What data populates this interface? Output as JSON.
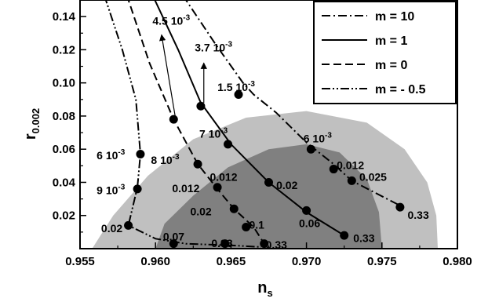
{
  "chart_data": {
    "type": "line",
    "xlabel": "n",
    "xlabel_sub": "s",
    "ylabel": "r",
    "ylabel_sub": "0.002",
    "xlim": [
      0.955,
      0.98
    ],
    "ylim": [
      0.0,
      0.15
    ],
    "xticks": [
      "0.955",
      "0.960",
      "0.965",
      "0.970",
      "0.975",
      "0.980"
    ],
    "yticks": [
      "0.02",
      "0.04",
      "0.06",
      "0.08",
      "0.10",
      "0.12",
      "0.14"
    ],
    "xtick_values": [
      0.955,
      0.96,
      0.965,
      0.97,
      0.975,
      0.98
    ],
    "ytick_values": [
      0.02,
      0.04,
      0.06,
      0.08,
      0.1,
      0.12,
      0.14
    ],
    "legend_position": "top-right",
    "grid": false,
    "regions": [
      {
        "name": "outer-contour",
        "color": "#c0c0c0",
        "points": [
          [
            0.9558,
            0.0
          ],
          [
            0.9572,
            0.02
          ],
          [
            0.9595,
            0.044
          ],
          [
            0.9625,
            0.066
          ],
          [
            0.966,
            0.079
          ],
          [
            0.97,
            0.083
          ],
          [
            0.974,
            0.076
          ],
          [
            0.9765,
            0.06
          ],
          [
            0.978,
            0.04
          ],
          [
            0.9786,
            0.02
          ],
          [
            0.9787,
            0.0
          ]
        ]
      },
      {
        "name": "inner-contour",
        "color": "#808080",
        "points": [
          [
            0.96,
            0.0
          ],
          [
            0.9606,
            0.015
          ],
          [
            0.9625,
            0.032
          ],
          [
            0.9648,
            0.049
          ],
          [
            0.9675,
            0.06
          ],
          [
            0.97,
            0.063
          ],
          [
            0.9722,
            0.058
          ],
          [
            0.974,
            0.042
          ],
          [
            0.9748,
            0.022
          ],
          [
            0.975,
            0.0
          ]
        ]
      }
    ],
    "series": [
      {
        "legend": "m =  10",
        "dash": "dashdot",
        "points": [
          [
            0.9618,
            0.153
          ],
          [
            0.964,
            0.123
          ],
          [
            0.9658,
            0.1
          ],
          [
            0.9665,
            0.093
          ],
          [
            0.968,
            0.082
          ],
          [
            0.97,
            0.064
          ],
          [
            0.9718,
            0.051
          ],
          [
            0.973,
            0.041
          ],
          [
            0.9762,
            0.026
          ]
        ],
        "markers": [
          [
            0.9655,
            0.093
          ],
          [
            0.9703,
            0.06
          ],
          [
            0.9718,
            0.048
          ],
          [
            0.973,
            0.041
          ],
          [
            0.9762,
            0.025
          ]
        ],
        "labels": [
          {
            "text": "1.5 10",
            "sup": "-3",
            "x": 0.9641,
            "y": 0.095
          },
          {
            "text": "6 10",
            "sup": "-3",
            "x": 0.9698,
            "y": 0.064
          },
          {
            "text": "0.012",
            "x": 0.972,
            "y": 0.048
          },
          {
            "text": "0.025",
            "x": 0.9735,
            "y": 0.041
          },
          {
            "text": "0.33",
            "x": 0.9767,
            "y": 0.018
          }
        ]
      },
      {
        "legend": "m =   1",
        "dash": "solid",
        "points": [
          [
            0.9598,
            0.153
          ],
          [
            0.9615,
            0.12
          ],
          [
            0.963,
            0.088
          ],
          [
            0.965,
            0.063
          ],
          [
            0.9675,
            0.04
          ],
          [
            0.97,
            0.022
          ],
          [
            0.9725,
            0.008
          ]
        ],
        "markers": [
          [
            0.963,
            0.086
          ],
          [
            0.9648,
            0.063
          ],
          [
            0.9675,
            0.04
          ],
          [
            0.97,
            0.023
          ],
          [
            0.9725,
            0.008
          ]
        ],
        "labels": [
          {
            "text": "7 10",
            "sup": "-3",
            "x": 0.9629,
            "y": 0.067
          },
          {
            "text": "0.012",
            "x": 0.9636,
            "y": 0.041
          },
          {
            "text": "0.02",
            "x": 0.968,
            "y": 0.036
          },
          {
            "text": "0.06",
            "x": 0.9695,
            "y": 0.013
          },
          {
            "text": "0.33",
            "x": 0.9731,
            "y": 0.004
          }
        ]
      },
      {
        "legend": "m =   0",
        "dash": "dashed",
        "points": [
          [
            0.9581,
            0.153
          ],
          [
            0.9596,
            0.112
          ],
          [
            0.9612,
            0.078
          ],
          [
            0.9628,
            0.051
          ],
          [
            0.9641,
            0.036
          ],
          [
            0.9652,
            0.024
          ],
          [
            0.9665,
            0.013
          ],
          [
            0.9672,
            0.003
          ]
        ],
        "markers": [
          [
            0.9612,
            0.078
          ],
          [
            0.9628,
            0.051
          ],
          [
            0.9641,
            0.037
          ],
          [
            0.9652,
            0.024
          ],
          [
            0.966,
            0.013
          ],
          [
            0.9672,
            0.003
          ]
        ],
        "labels": [
          {
            "text": "8 10",
            "sup": "-3",
            "x": 0.9597,
            "y": 0.051
          },
          {
            "text": "0.012",
            "x": 0.9611,
            "y": 0.034
          },
          {
            "text": "0.02",
            "x": 0.9623,
            "y": 0.02
          },
          {
            "text": "0.1",
            "x": 0.9662,
            "y": 0.012
          },
          {
            "text": "0.33",
            "x": 0.9673,
            "y": 0.0
          }
        ]
      },
      {
        "legend": "m = - 0.5",
        "dash": "dashdotdot",
        "points": [
          [
            0.9566,
            0.153
          ],
          [
            0.9578,
            0.12
          ],
          [
            0.9587,
            0.09
          ],
          [
            0.959,
            0.057
          ],
          [
            0.9588,
            0.037
          ],
          [
            0.9582,
            0.014
          ],
          [
            0.96,
            0.006
          ],
          [
            0.962,
            0.003
          ],
          [
            0.965,
            0.002
          ],
          [
            0.967,
            0.001
          ]
        ],
        "markers": [
          [
            0.959,
            0.057
          ],
          [
            0.9588,
            0.036
          ],
          [
            0.9582,
            0.014
          ],
          [
            0.9612,
            0.003
          ],
          [
            0.9646,
            0.003
          ]
        ],
        "labels": [
          {
            "text": "6 10",
            "sup": "-3",
            "x": 0.9561,
            "y": 0.054
          },
          {
            "text": "9 10",
            "sup": "-3",
            "x": 0.9561,
            "y": 0.033
          },
          {
            "text": "0.02",
            "x": 0.9564,
            "y": 0.01
          },
          {
            "text": "0.07",
            "x": 0.9605,
            "y": 0.005
          },
          {
            "text": "0.33",
            "x": 0.9637,
            "y": 0.001
          }
        ]
      }
    ],
    "annotations": [
      {
        "text": "4.5 10",
        "sup": "-3",
        "x": 0.9598,
        "y": 0.135,
        "arrow_from": [
          0.9613,
          0.08
        ],
        "arrow_to": [
          0.9604,
          0.129
        ]
      },
      {
        "text": "3.7 10",
        "sup": "-3",
        "x": 0.9626,
        "y": 0.119,
        "arrow_from": [
          0.9632,
          0.088
        ],
        "arrow_to": [
          0.9632,
          0.112
        ]
      }
    ]
  }
}
